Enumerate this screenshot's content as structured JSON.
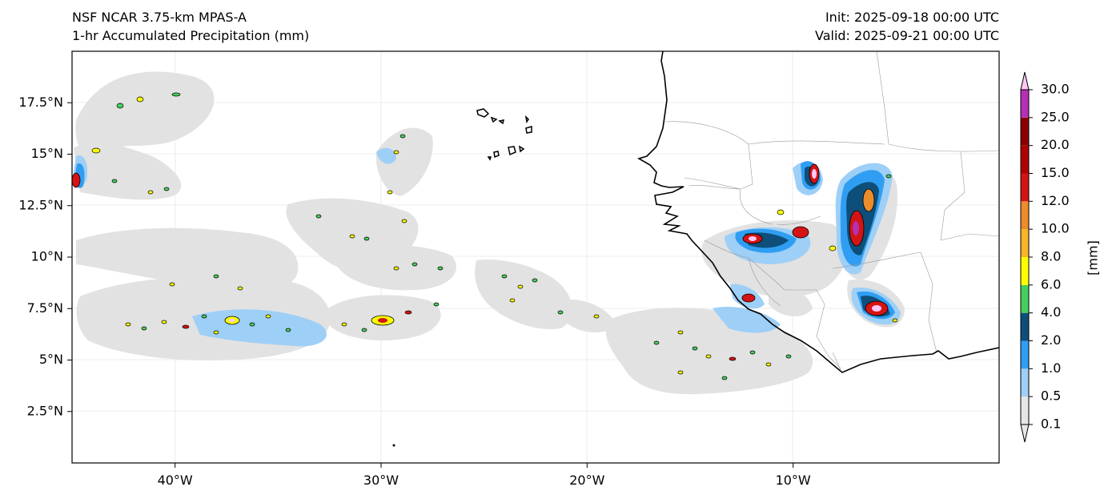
{
  "title": {
    "model": "NSF NCAR 3.75-km MPAS-A",
    "field": "1-hr Accumulated Precipitation (mm)",
    "init": "Init: 2025-09-18 00:00 UTC",
    "valid": "Valid: 2025-09-21 00:00 UTC"
  },
  "map": {
    "lat_ticks": [
      {
        "label": "17.5°N",
        "value": 17.5
      },
      {
        "label": "15°N",
        "value": 15
      },
      {
        "label": "12.5°N",
        "value": 12.5
      },
      {
        "label": "10°N",
        "value": 10
      },
      {
        "label": "7.5°N",
        "value": 7.5
      },
      {
        "label": "5°N",
        "value": 5
      },
      {
        "label": "2.5°N",
        "value": 2.5
      }
    ],
    "lon_ticks": [
      {
        "label": "40°W",
        "value": -40
      },
      {
        "label": "30°W",
        "value": -30
      },
      {
        "label": "20°W",
        "value": -20
      },
      {
        "label": "10°W",
        "value": -10
      }
    ],
    "extent": {
      "lon_min": -45,
      "lon_max": 0,
      "lat_min": 0,
      "lat_max": 20
    }
  },
  "colorbar": {
    "unit_label": "[mm]",
    "levels": [
      {
        "label": "0.1",
        "color": "#e6e6e6"
      },
      {
        "label": "0.5",
        "color": "#9ecff7"
      },
      {
        "label": "1.0",
        "color": "#2f9ef2"
      },
      {
        "label": "2.0",
        "color": "#0d4f7a"
      },
      {
        "label": "4.0",
        "color": "#46cf5c"
      },
      {
        "label": "6.0",
        "color": "#ffff00"
      },
      {
        "label": "8.0",
        "color": "#f7b52a"
      },
      {
        "label": "10.0",
        "color": "#ec8c2c"
      },
      {
        "label": "12.0",
        "color": "#d41414"
      },
      {
        "label": "15.0",
        "color": "#b00000"
      },
      {
        "label": "20.0",
        "color": "#8a0000"
      },
      {
        "label": "25.0",
        "color": "#b530b5"
      },
      {
        "label": "30.0",
        "color": "#ffc8f5"
      }
    ]
  }
}
